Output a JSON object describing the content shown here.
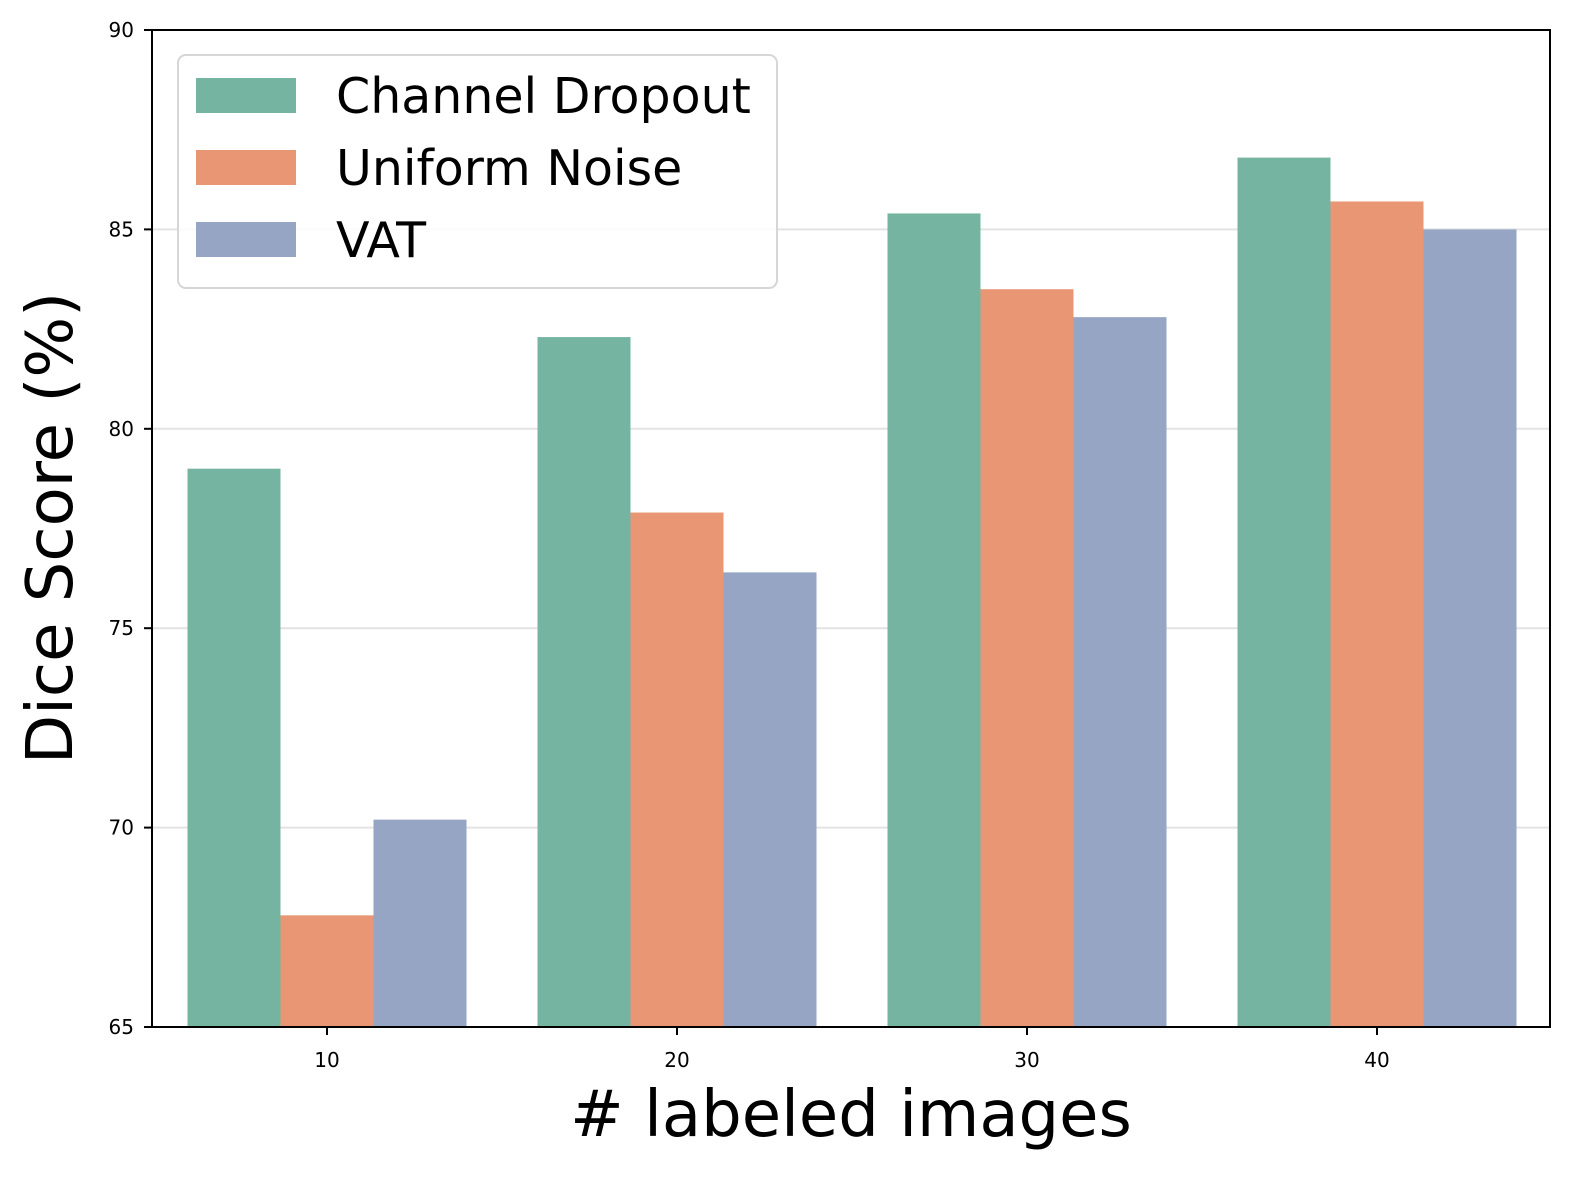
{
  "chart_data": {
    "type": "bar",
    "title": "",
    "xlabel": "# labeled images",
    "ylabel": "Dice Score (%)",
    "categories": [
      "10",
      "20",
      "30",
      "40"
    ],
    "ylim": [
      65,
      90
    ],
    "yticks": [
      "65",
      "70",
      "75",
      "80",
      "85",
      "90"
    ],
    "grid": "horizontal",
    "legend_position": "upper-left",
    "series": [
      {
        "name": "Channel Dropout",
        "color": "#74b4a0",
        "values": [
          79.0,
          82.3,
          85.4,
          86.8
        ]
      },
      {
        "name": "Uniform Noise",
        "color": "#e89674",
        "values": [
          67.8,
          77.9,
          83.5,
          85.7
        ]
      },
      {
        "name": "VAT",
        "color": "#96a5c3",
        "values": [
          70.2,
          76.4,
          82.8,
          85.0
        ]
      }
    ]
  }
}
